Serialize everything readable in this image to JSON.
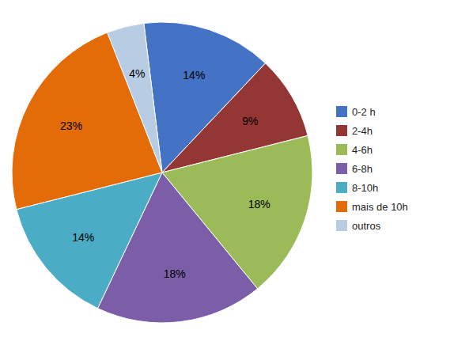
{
  "chart_data": {
    "type": "pie",
    "categories": [
      "0-2 h",
      "2-4h",
      "4-6h",
      "6-8h",
      "8-10h",
      "mais de 10h",
      "outros"
    ],
    "values": [
      14,
      9,
      18,
      18,
      14,
      23,
      4
    ],
    "value_labels": [
      "14%",
      "9%",
      "18%",
      "18%",
      "14%",
      "23%",
      "4%"
    ],
    "colors": [
      "#4472C4",
      "#943634",
      "#9BBB59",
      "#7B5EA7",
      "#4BACC6",
      "#E36C09",
      "#B8CCE4"
    ],
    "data_labels": true,
    "legend": "right"
  }
}
